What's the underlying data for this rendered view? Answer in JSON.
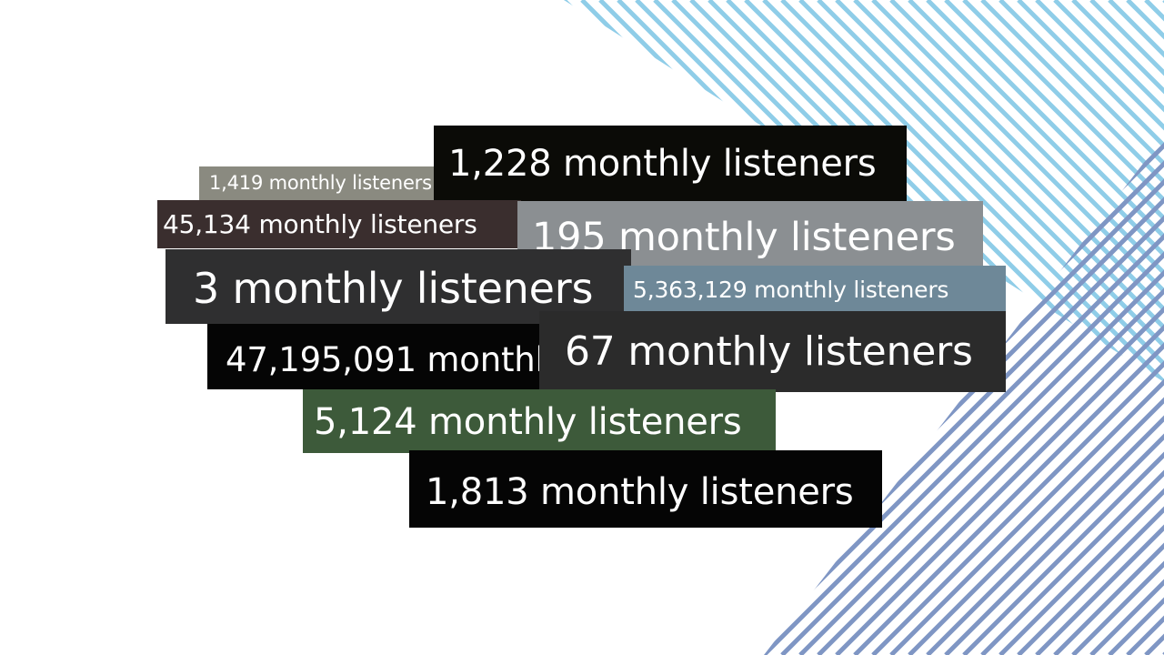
{
  "colors": {
    "background": "#ffffff",
    "stripe_light_blue": "#8fcde8",
    "stripe_steel_blue": "#7f96c4"
  },
  "clips": [
    {
      "id": "1419",
      "text": "1,419 monthly listeners",
      "background": "#8a8a80"
    },
    {
      "id": "1228",
      "text": "1,228 monthly listeners",
      "background": "#0b0b07"
    },
    {
      "id": "45134",
      "text": "45,134 monthly listeners",
      "background": "#3a2e2e"
    },
    {
      "id": "195",
      "text": "195 monthly listeners",
      "background": "#8b8f92"
    },
    {
      "id": "3",
      "text": "3 monthly listeners",
      "background": "#2f2f30"
    },
    {
      "id": "5363129",
      "text": "5,363,129 monthly listeners",
      "background": "#6e8898"
    },
    {
      "id": "47195091",
      "text": "47,195,091 monthly",
      "background": "#050505"
    },
    {
      "id": "67",
      "text": "67 monthly listeners",
      "background": "#2b2b2b"
    },
    {
      "id": "5124",
      "text": "5,124 monthly listeners",
      "background": "#3d5a3a"
    },
    {
      "id": "1813",
      "text": "1,813 monthly listeners",
      "background": "#050505"
    }
  ]
}
